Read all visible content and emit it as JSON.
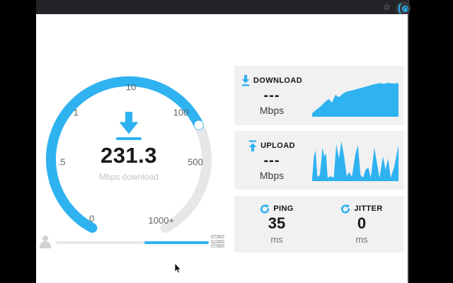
{
  "browser": {
    "bookmark_star": "☆"
  },
  "gauge": {
    "value": "231.3",
    "caption": "Mbps download",
    "scale": [
      "0",
      ".5",
      "1",
      "10",
      "100",
      "500",
      "1000+"
    ]
  },
  "panels": {
    "download": {
      "label": "DOWNLOAD",
      "value": "---",
      "unit": "Mbps",
      "chart_points": [
        [
          0,
          10
        ],
        [
          5,
          20
        ],
        [
          10,
          30
        ],
        [
          15,
          42
        ],
        [
          19,
          50
        ],
        [
          23,
          40
        ],
        [
          27,
          62
        ],
        [
          31,
          55
        ],
        [
          36,
          66
        ],
        [
          41,
          72
        ],
        [
          47,
          75
        ],
        [
          53,
          79
        ],
        [
          59,
          83
        ],
        [
          66,
          88
        ],
        [
          72,
          92
        ],
        [
          78,
          95
        ],
        [
          83,
          93
        ],
        [
          88,
          96
        ],
        [
          93,
          94
        ],
        [
          100,
          95
        ]
      ]
    },
    "upload": {
      "label": "UPLOAD",
      "value": "---",
      "unit": "Mbps",
      "chart_points": [
        [
          0,
          5
        ],
        [
          2,
          60
        ],
        [
          4,
          75
        ],
        [
          6,
          10
        ],
        [
          9,
          15
        ],
        [
          12,
          82
        ],
        [
          14,
          60
        ],
        [
          16,
          68
        ],
        [
          18,
          8
        ],
        [
          21,
          12
        ],
        [
          25,
          8
        ],
        [
          28,
          90
        ],
        [
          31,
          55
        ],
        [
          34,
          97
        ],
        [
          37,
          60
        ],
        [
          40,
          12
        ],
        [
          43,
          22
        ],
        [
          46,
          10
        ],
        [
          50,
          65
        ],
        [
          53,
          88
        ],
        [
          56,
          15
        ],
        [
          59,
          8
        ],
        [
          62,
          28
        ],
        [
          65,
          33
        ],
        [
          68,
          8
        ],
        [
          72,
          82
        ],
        [
          75,
          45
        ],
        [
          78,
          8
        ],
        [
          82,
          60
        ],
        [
          85,
          28
        ],
        [
          88,
          55
        ],
        [
          91,
          8
        ],
        [
          95,
          35
        ],
        [
          100,
          88
        ]
      ]
    },
    "ping": {
      "label": "PING",
      "value": "35",
      "unit": "ms"
    },
    "jitter": {
      "label": "JITTER",
      "value": "0",
      "unit": "ms"
    }
  },
  "colors": {
    "accent": "#2fb2f0",
    "panel_bg": "#f1f1f2",
    "chrome_bg": "#222427",
    "track": "#e7e7e9"
  }
}
